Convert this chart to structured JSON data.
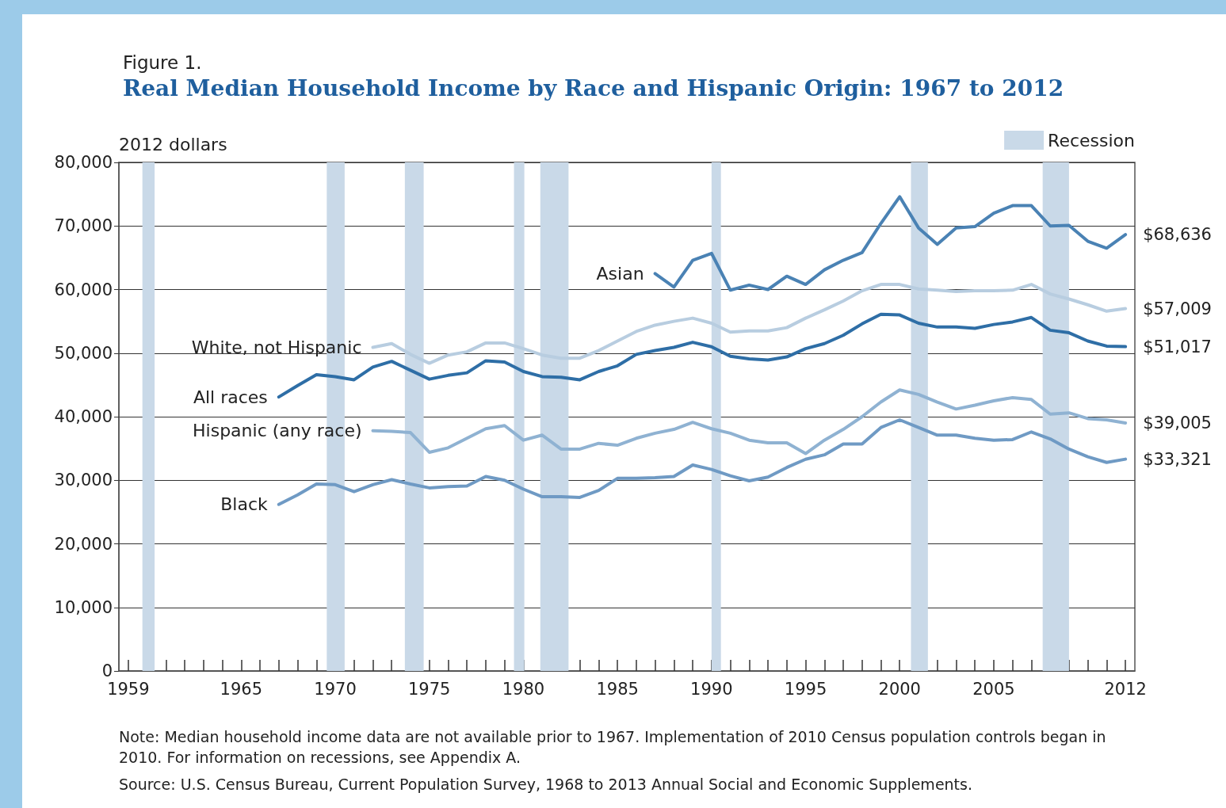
{
  "chart_data": {
    "type": "line",
    "subtitle": "Figure 1.",
    "title": "Real Median Household Income by Race and Hispanic Origin: 1967 to 2012",
    "ylabel": "2012 dollars",
    "x": [
      1967,
      1968,
      1969,
      1970,
      1971,
      1972,
      1973,
      1974,
      1975,
      1976,
      1977,
      1978,
      1979,
      1980,
      1981,
      1982,
      1983,
      1984,
      1985,
      1986,
      1987,
      1988,
      1989,
      1990,
      1991,
      1992,
      1993,
      1994,
      1995,
      1996,
      1997,
      1998,
      1999,
      2000,
      2001,
      2002,
      2003,
      2004,
      2005,
      2006,
      2007,
      2008,
      2009,
      2010,
      2011,
      2012
    ],
    "series": [
      {
        "name": "Asian",
        "color": "#4a82b4",
        "values": [
          null,
          null,
          null,
          null,
          null,
          null,
          null,
          null,
          null,
          null,
          null,
          null,
          null,
          null,
          null,
          null,
          null,
          null,
          null,
          null,
          62500,
          60400,
          64600,
          65700,
          59900,
          60700,
          60000,
          62100,
          60800,
          63100,
          64600,
          65800,
          70400,
          74600,
          69700,
          67100,
          69700,
          69900,
          72000,
          73200,
          73200,
          70000,
          70100,
          67600,
          66500,
          68636
        ],
        "value_labels": [
          null,
          null,
          null,
          null,
          null,
          null,
          null,
          null,
          null,
          null,
          null,
          null,
          null,
          null,
          null,
          null,
          null,
          null,
          null,
          null,
          null,
          null,
          null,
          null,
          null,
          null,
          null,
          null,
          null,
          null,
          null,
          null,
          null,
          null,
          null,
          null,
          null,
          null,
          null,
          null,
          null,
          null,
          null,
          null,
          null,
          "$68,636"
        ]
      },
      {
        "name": "White, not Hispanic",
        "color": "#b8cde0",
        "values": [
          null,
          null,
          null,
          null,
          null,
          50900,
          51500,
          49800,
          48400,
          49700,
          50200,
          51600,
          51600,
          50700,
          49700,
          49200,
          49200,
          50400,
          51900,
          53400,
          54400,
          55000,
          55500,
          54700,
          53300,
          53500,
          53500,
          54000,
          55500,
          56800,
          58200,
          59800,
          60800,
          60800,
          60100,
          59900,
          59700,
          59800,
          59800,
          59900,
          60800,
          59300,
          58500,
          57600,
          56600,
          57009
        ],
        "value_labels": [
          null,
          null,
          null,
          null,
          null,
          null,
          null,
          null,
          null,
          null,
          null,
          null,
          null,
          null,
          null,
          null,
          null,
          null,
          null,
          null,
          null,
          null,
          null,
          null,
          null,
          null,
          null,
          null,
          null,
          null,
          null,
          null,
          null,
          null,
          null,
          null,
          null,
          null,
          null,
          null,
          null,
          null,
          null,
          null,
          null,
          "$57,009"
        ]
      },
      {
        "name": "All races",
        "color": "#2e6ea6",
        "values": [
          43100,
          44900,
          46600,
          46300,
          45800,
          47800,
          48700,
          47300,
          45900,
          46500,
          46900,
          48800,
          48600,
          47100,
          46300,
          46200,
          45800,
          47100,
          48000,
          49800,
          50400,
          50900,
          51700,
          51000,
          49500,
          49100,
          48900,
          49400,
          50700,
          51500,
          52800,
          54600,
          56100,
          56000,
          54700,
          54100,
          54100,
          53900,
          54500,
          54900,
          55600,
          53600,
          53200,
          51900,
          51100,
          51017
        ],
        "value_labels": [
          null,
          null,
          null,
          null,
          null,
          null,
          null,
          null,
          null,
          null,
          null,
          null,
          null,
          null,
          null,
          null,
          null,
          null,
          null,
          null,
          null,
          null,
          null,
          null,
          null,
          null,
          null,
          null,
          null,
          null,
          null,
          null,
          null,
          null,
          null,
          null,
          null,
          null,
          null,
          null,
          null,
          null,
          null,
          null,
          null,
          "$51,017"
        ]
      },
      {
        "name": "Hispanic (any race)",
        "color": "#8fb2d2",
        "values": [
          null,
          null,
          null,
          null,
          null,
          37800,
          37700,
          37500,
          34400,
          35100,
          36600,
          38100,
          38600,
          36300,
          37100,
          34900,
          34900,
          35800,
          35500,
          36600,
          37400,
          38000,
          39100,
          38100,
          37400,
          36300,
          35900,
          35900,
          34200,
          36300,
          38000,
          40000,
          42300,
          44200,
          43500,
          42300,
          41200,
          41800,
          42500,
          43000,
          42700,
          40400,
          40600,
          39700,
          39500,
          39005
        ],
        "value_labels": [
          null,
          null,
          null,
          null,
          null,
          null,
          null,
          null,
          null,
          null,
          null,
          null,
          null,
          null,
          null,
          null,
          null,
          null,
          null,
          null,
          null,
          null,
          null,
          null,
          null,
          null,
          null,
          null,
          null,
          null,
          null,
          null,
          null,
          null,
          null,
          null,
          null,
          null,
          null,
          null,
          null,
          null,
          null,
          null,
          null,
          "$39,005"
        ]
      },
      {
        "name": "Black",
        "color": "#6f9ac4",
        "values": [
          26200,
          27700,
          29400,
          29300,
          28200,
          29300,
          30100,
          29400,
          28800,
          29000,
          29100,
          30600,
          30000,
          28600,
          27400,
          27400,
          27300,
          28400,
          30300,
          30300,
          30400,
          30600,
          32400,
          31700,
          30700,
          29900,
          30500,
          32000,
          33300,
          34000,
          35700,
          35700,
          38300,
          39500,
          38300,
          37100,
          37100,
          36600,
          36300,
          36400,
          37600,
          36500,
          34900,
          33700,
          32800,
          33321
        ],
        "value_labels": [
          null,
          null,
          null,
          null,
          null,
          null,
          null,
          null,
          null,
          null,
          null,
          null,
          null,
          null,
          null,
          null,
          null,
          null,
          null,
          null,
          null,
          null,
          null,
          null,
          null,
          null,
          null,
          null,
          null,
          null,
          null,
          null,
          null,
          null,
          null,
          null,
          null,
          null,
          null,
          null,
          null,
          null,
          null,
          null,
          null,
          "$33,321"
        ]
      }
    ],
    "xlim": [
      1958.5,
      2012.5
    ],
    "xticks": [
      1959,
      {
        "value": 1960,
        "label": null
      },
      {
        "value": 1961,
        "label": null
      },
      {
        "value": 1962,
        "label": null
      },
      {
        "value": 1963,
        "label": null
      },
      {
        "value": 1964,
        "label": null
      },
      1965,
      {
        "value": 1966,
        "label": null
      },
      {
        "value": 1967,
        "label": null
      },
      {
        "value": 1968,
        "label": null
      },
      {
        "value": 1969,
        "label": null
      },
      1970,
      {
        "value": 1971,
        "label": null
      },
      {
        "value": 1972,
        "label": null
      },
      {
        "value": 1973,
        "label": null
      },
      {
        "value": 1974,
        "label": null
      },
      1975,
      {
        "value": 1976,
        "label": null
      },
      {
        "value": 1977,
        "label": null
      },
      {
        "value": 1978,
        "label": null
      },
      {
        "value": 1979,
        "label": null
      },
      1980,
      {
        "value": 1981,
        "label": null
      },
      {
        "value": 1982,
        "label": null
      },
      {
        "value": 1983,
        "label": null
      },
      {
        "value": 1984,
        "label": null
      },
      1985,
      {
        "value": 1986,
        "label": null
      },
      {
        "value": 1987,
        "label": null
      },
      {
        "value": 1988,
        "label": null
      },
      {
        "value": 1989,
        "label": null
      },
      1990,
      {
        "value": 1991,
        "label": null
      },
      {
        "value": 1992,
        "label": null
      },
      {
        "value": 1993,
        "label": null
      },
      {
        "value": 1994,
        "label": null
      },
      1995,
      {
        "value": 1996,
        "label": null
      },
      {
        "value": 1997,
        "label": null
      },
      {
        "value": 1998,
        "label": null
      },
      {
        "value": 1999,
        "label": null
      },
      2000,
      {
        "value": 2001,
        "label": null
      },
      {
        "value": 2002,
        "label": null
      },
      {
        "value": 2003,
        "label": null
      },
      {
        "value": 2004,
        "label": null
      },
      2005,
      {
        "value": 2006,
        "label": null
      },
      {
        "value": 2007,
        "label": null
      },
      {
        "value": 2008,
        "label": null
      },
      {
        "value": 2009,
        "label": null
      },
      {
        "value": 2010,
        "label": null
      },
      {
        "value": 2011,
        "label": null
      },
      2012
    ],
    "ylim": [
      0,
      80000
    ],
    "yticks": [
      0,
      {
        "value": 10000,
        "label": "10,000"
      },
      {
        "value": 20000,
        "label": "20,000"
      },
      {
        "value": 30000,
        "label": "30,000"
      },
      {
        "value": 40000,
        "label": "40,000"
      },
      {
        "value": 50000,
        "label": "50,000"
      },
      {
        "value": 60000,
        "label": "60,000"
      },
      {
        "value": 70000,
        "label": "70,000"
      },
      {
        "value": 80000,
        "label": "80,000"
      }
    ],
    "grid": "y",
    "legend": "top right",
    "bands": [
      {
        "axis": "x",
        "from": 1959.75,
        "to": 1960.4,
        "label": "Recession",
        "color": "#c9d9e8"
      },
      {
        "axis": "x",
        "from": 1969.55,
        "to": 1970.5,
        "color": "#c9d9e8"
      },
      {
        "axis": "x",
        "from": 1973.7,
        "to": 1974.7,
        "color": "#c9d9e8"
      },
      {
        "axis": "x",
        "from": 1979.5,
        "to": 1980.05,
        "color": "#c9d9e8"
      },
      {
        "axis": "x",
        "from": 1980.9,
        "to": 1982.4,
        "color": "#c9d9e8"
      },
      {
        "axis": "x",
        "from": 1990.0,
        "to": 1990.5,
        "color": "#c9d9e8"
      },
      {
        "axis": "x",
        "from": 2000.6,
        "to": 2001.5,
        "color": "#c9d9e8"
      },
      {
        "axis": "x",
        "from": 2007.6,
        "to": 2009.0,
        "color": "#c9d9e8"
      }
    ],
    "annotations": [
      "Note: Median household income data are not available prior to 1967. Implementation of 2010 Census population controls began in 2010. For information on recessions, see Appendix A.",
      "Source: U.S. Census Bureau, Current Population Survey, 1968 to 2013 Annual Social and Economic Supplements."
    ]
  }
}
